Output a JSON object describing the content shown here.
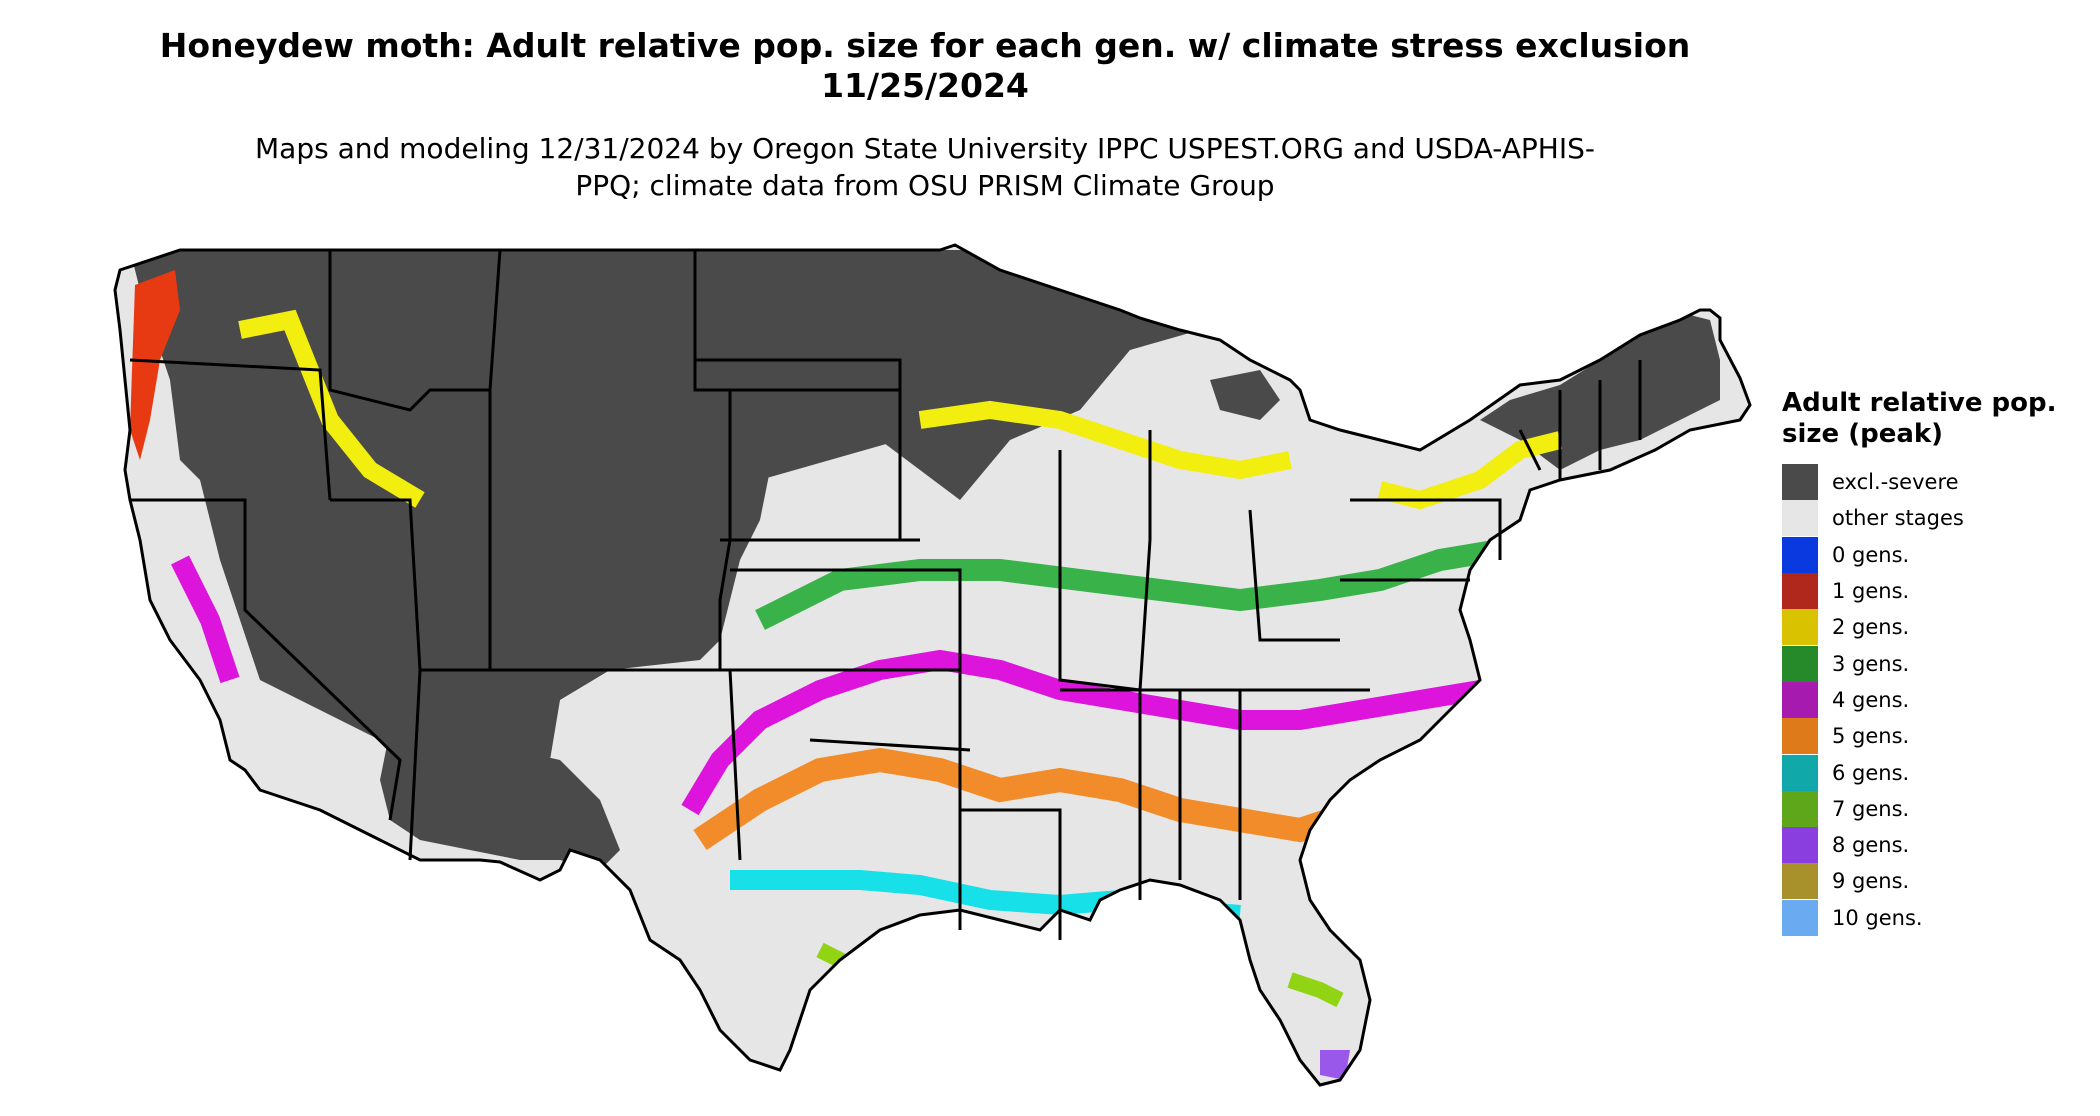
{
  "title": "Honeydew moth: Adult relative pop. size for each gen. w/ climate stress exclusion 11/25/2024",
  "subtitle": "Maps and modeling 12/31/2024 by Oregon State University IPPC USPEST.ORG and USDA-APHIS-PPQ; climate data from OSU PRISM Climate Group",
  "legend": {
    "title": "Adult relative pop. size (peak)",
    "items": [
      {
        "label": "excl.-severe",
        "color": "#4a4a4a"
      },
      {
        "label": "other stages",
        "color": "#e6e6e6"
      },
      {
        "label": "0 gens.",
        "color": "#0a3adf"
      },
      {
        "label": "1 gens.",
        "color": "#b0281c"
      },
      {
        "label": "2 gens.",
        "color": "#d9c200"
      },
      {
        "label": "3 gens.",
        "color": "#268a2a"
      },
      {
        "label": "4 gens.",
        "color": "#a61ab0"
      },
      {
        "label": "5 gens.",
        "color": "#de7a1a"
      },
      {
        "label": "6 gens.",
        "color": "#10a8a8"
      },
      {
        "label": "7 gens.",
        "color": "#5ea61a"
      },
      {
        "label": "8 gens.",
        "color": "#8a3ee0"
      },
      {
        "label": "9 gens.",
        "color": "#a8902a"
      },
      {
        "label": "10 gens.",
        "color": "#6aaaf0"
      }
    ]
  },
  "map_colors": {
    "dark": "#4a4a4a",
    "light": "#e6e6e6",
    "red": "#e83a12",
    "yellow": "#f2ee10",
    "green": "#3ab24a",
    "magenta": "#dc14dc",
    "orange": "#f28c2a",
    "cyan": "#18e0e8",
    "lime": "#90d414",
    "purple": "#9a58ea",
    "border": "#000000"
  }
}
